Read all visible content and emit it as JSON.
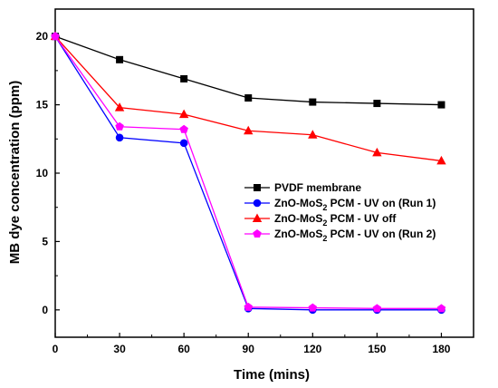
{
  "chart_data": {
    "type": "line",
    "xlabel": "Time (mins)",
    "ylabel": "MB dye concentration (ppm)",
    "xlim": [
      0,
      195
    ],
    "ylim": [
      -2,
      22
    ],
    "xticks": [
      0,
      30,
      60,
      90,
      120,
      150,
      180
    ],
    "yticks": [
      0,
      5,
      10,
      15,
      20
    ],
    "grid": false,
    "legend_position": "center-right",
    "series": [
      {
        "legend_prefix": "PVDF membrane",
        "legend_sub": "",
        "legend_suffix": "",
        "color": "#000000",
        "marker": "square",
        "x": [
          0,
          30,
          60,
          90,
          120,
          150,
          180
        ],
        "y": [
          20,
          18.3,
          16.9,
          15.5,
          15.2,
          15.1,
          15.0
        ]
      },
      {
        "legend_prefix": "ZnO-MoS",
        "legend_sub": "2",
        "legend_suffix": " PCM - UV on (Run 1)",
        "color": "#0000ff",
        "marker": "circle",
        "x": [
          0,
          30,
          60,
          90,
          120,
          150,
          180
        ],
        "y": [
          20,
          12.6,
          12.2,
          0.1,
          0.0,
          0.0,
          0.0
        ]
      },
      {
        "legend_prefix": "ZnO-MoS",
        "legend_sub": "2",
        "legend_suffix": " PCM - UV off",
        "color": "#ff0000",
        "marker": "triangle",
        "x": [
          0,
          30,
          60,
          90,
          120,
          150,
          180
        ],
        "y": [
          20,
          14.8,
          14.3,
          13.1,
          12.8,
          11.5,
          10.9
        ]
      },
      {
        "legend_prefix": "ZnO-MoS",
        "legend_sub": "2",
        "legend_suffix": " PCM - UV on (Run 2)",
        "color": "#ff00ff",
        "marker": "pentagon",
        "x": [
          0,
          30,
          60,
          90,
          120,
          150,
          180
        ],
        "y": [
          20,
          13.4,
          13.2,
          0.2,
          0.15,
          0.1,
          0.1
        ]
      }
    ]
  }
}
